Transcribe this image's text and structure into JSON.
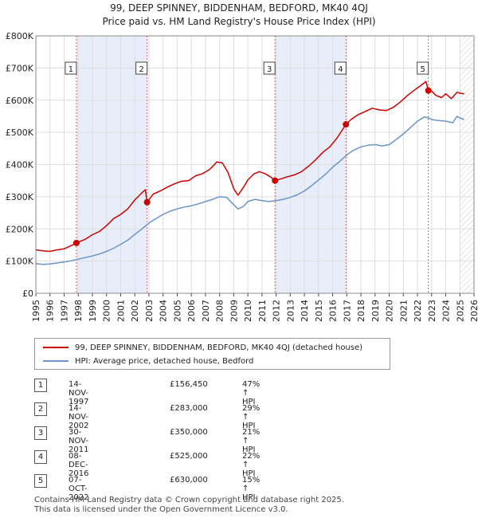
{
  "header": {
    "title": "99, DEEP SPINNEY, BIDDENHAM, BEDFORD, MK40 4QJ",
    "subtitle": "Price paid vs. HM Land Registry's House Price Index (HPI)"
  },
  "colors": {
    "property": "#cc0000",
    "hpi": "#6b94c8",
    "shade": "#e8eef9",
    "hatch": "#c8c8c8",
    "grid": "#dddddd",
    "vline": "#e06060"
  },
  "chart_data": {
    "type": "line",
    "title": "99, DEEP SPINNEY, BIDDENHAM, BEDFORD, MK40 4QJ",
    "xlabel": "",
    "ylabel": "",
    "xlim": [
      1995,
      2026
    ],
    "ylim": [
      0,
      800000
    ],
    "y_ticks": [
      {
        "value": 0,
        "label": "£0"
      },
      {
        "value": 100000,
        "label": "£100K"
      },
      {
        "value": 200000,
        "label": "£200K"
      },
      {
        "value": 300000,
        "label": "£300K"
      },
      {
        "value": 400000,
        "label": "£400K"
      },
      {
        "value": 500000,
        "label": "£500K"
      },
      {
        "value": 600000,
        "label": "£600K"
      },
      {
        "value": 700000,
        "label": "£700K"
      },
      {
        "value": 800000,
        "label": "£800K"
      }
    ],
    "x_ticks": [
      "1995",
      "1996",
      "1997",
      "1998",
      "1999",
      "2000",
      "2001",
      "2002",
      "2003",
      "2004",
      "2005",
      "2006",
      "2007",
      "2008",
      "2009",
      "2010",
      "2011",
      "2012",
      "2013",
      "2014",
      "2015",
      "2016",
      "2017",
      "2018",
      "2019",
      "2020",
      "2021",
      "2022",
      "2023",
      "2024",
      "2025",
      "2026"
    ],
    "shaded_periods": [
      [
        1997.87,
        2002.87
      ],
      [
        2011.92,
        2016.94
      ]
    ],
    "hatched_from": 2025.0,
    "series": [
      {
        "name": "99, DEEP SPINNEY, BIDDENHAM, BEDFORD, MK40 4QJ (detached house)",
        "x": [
          1995.0,
          1995.5,
          1996.0,
          1996.5,
          1997.0,
          1997.5,
          1997.87,
          1998.5,
          1999.0,
          1999.5,
          2000.0,
          2000.5,
          2001.0,
          2001.5,
          2002.0,
          2002.5,
          2002.75,
          2002.87,
          2003.3,
          2003.8,
          2004.3,
          2004.8,
          2005.3,
          2005.8,
          2006.3,
          2006.8,
          2007.3,
          2007.8,
          2008.2,
          2008.6,
          2009.0,
          2009.3,
          2009.7,
          2010.0,
          2010.4,
          2010.8,
          2011.2,
          2011.6,
          2011.92,
          2012.3,
          2012.8,
          2013.3,
          2013.8,
          2014.3,
          2014.8,
          2015.3,
          2015.8,
          2016.3,
          2016.94,
          2017.3,
          2017.8,
          2018.3,
          2018.8,
          2019.3,
          2019.8,
          2020.3,
          2020.8,
          2021.3,
          2021.8,
          2022.3,
          2022.6,
          2022.77,
          2023.0,
          2023.3,
          2023.7,
          2024.0,
          2024.4,
          2024.8,
          2025.0,
          2025.3
        ],
        "values": [
          135000,
          132000,
          130000,
          135000,
          138000,
          148000,
          156450,
          168000,
          182000,
          192000,
          210000,
          232000,
          245000,
          262000,
          290000,
          312000,
          322000,
          283000,
          308000,
          318000,
          330000,
          340000,
          348000,
          350000,
          365000,
          372000,
          385000,
          408000,
          405000,
          375000,
          325000,
          305000,
          330000,
          352000,
          370000,
          378000,
          372000,
          362000,
          350000,
          355000,
          362000,
          368000,
          378000,
          395000,
          415000,
          438000,
          455000,
          482000,
          525000,
          540000,
          555000,
          565000,
          575000,
          570000,
          568000,
          578000,
          595000,
          615000,
          632000,
          648000,
          658000,
          630000,
          628000,
          615000,
          608000,
          620000,
          605000,
          625000,
          622000,
          620000
        ]
      },
      {
        "name": "HPI: Average price, detached house, Bedford",
        "x": [
          1995.0,
          1995.5,
          1996.0,
          1996.5,
          1997.0,
          1997.5,
          1998.0,
          1998.5,
          1999.0,
          1999.5,
          2000.0,
          2000.5,
          2001.0,
          2001.5,
          2002.0,
          2002.5,
          2003.0,
          2003.5,
          2004.0,
          2004.5,
          2005.0,
          2005.5,
          2006.0,
          2006.5,
          2007.0,
          2007.5,
          2008.0,
          2008.5,
          2009.0,
          2009.3,
          2009.7,
          2010.0,
          2010.5,
          2011.0,
          2011.5,
          2012.0,
          2012.5,
          2013.0,
          2013.5,
          2014.0,
          2014.5,
          2015.0,
          2015.5,
          2016.0,
          2016.5,
          2017.0,
          2017.5,
          2018.0,
          2018.5,
          2019.0,
          2019.5,
          2020.0,
          2020.5,
          2021.0,
          2021.5,
          2022.0,
          2022.5,
          2022.8,
          2023.0,
          2023.5,
          2024.0,
          2024.5,
          2024.8,
          2025.0,
          2025.3
        ],
        "values": [
          92000,
          90000,
          91000,
          94000,
          97000,
          101000,
          106000,
          111000,
          116000,
          122000,
          130000,
          140000,
          152000,
          165000,
          183000,
          200000,
          218000,
          232000,
          245000,
          255000,
          262000,
          268000,
          272000,
          278000,
          285000,
          292000,
          300000,
          298000,
          275000,
          262000,
          270000,
          285000,
          292000,
          288000,
          285000,
          288000,
          292000,
          298000,
          306000,
          318000,
          334000,
          352000,
          370000,
          392000,
          410000,
          430000,
          445000,
          455000,
          460000,
          462000,
          458000,
          462000,
          478000,
          495000,
          515000,
          535000,
          548000,
          545000,
          540000,
          537000,
          535000,
          530000,
          550000,
          545000,
          540000
        ]
      }
    ],
    "sales": [
      {
        "label": "1",
        "x": 1997.87,
        "value": 156450
      },
      {
        "label": "2",
        "x": 2002.87,
        "value": 283000
      },
      {
        "label": "3",
        "x": 2011.92,
        "value": 350000
      },
      {
        "label": "4",
        "x": 2016.94,
        "value": 525000
      },
      {
        "label": "5",
        "x": 2022.77,
        "value": 630000
      }
    ]
  },
  "legend": {
    "property_label": "99, DEEP SPINNEY, BIDDENHAM, BEDFORD, MK40 4QJ (detached house)",
    "hpi_label": "HPI: Average price, detached house, Bedford"
  },
  "transactions": [
    {
      "num": "1",
      "date": "14-NOV-1997",
      "price": "£156,450",
      "hpi": "47% ↑ HPI"
    },
    {
      "num": "2",
      "date": "14-NOV-2002",
      "price": "£283,000",
      "hpi": "29% ↑ HPI"
    },
    {
      "num": "3",
      "date": "30-NOV-2011",
      "price": "£350,000",
      "hpi": "21% ↑ HPI"
    },
    {
      "num": "4",
      "date": "08-DEC-2016",
      "price": "£525,000",
      "hpi": "22% ↑ HPI"
    },
    {
      "num": "5",
      "date": "07-OCT-2022",
      "price": "£630,000",
      "hpi": "15% ↑ HPI"
    }
  ],
  "footer": {
    "line1": "Contains HM Land Registry data © Crown copyright and database right 2025.",
    "line2": "This data is licensed under the Open Government Licence v3.0."
  }
}
